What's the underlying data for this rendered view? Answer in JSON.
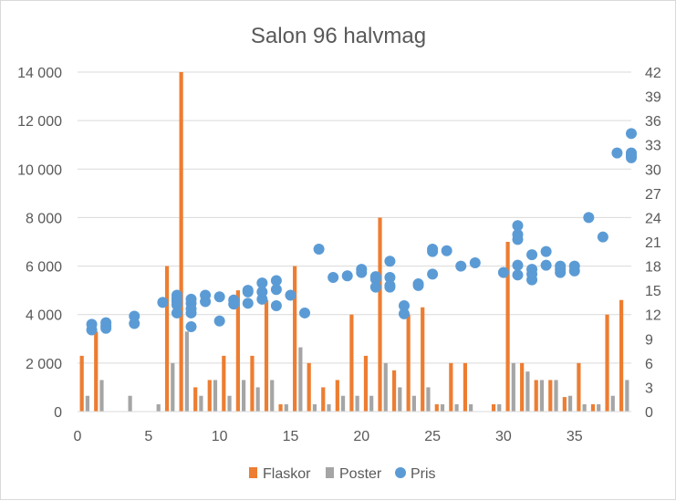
{
  "chart_data": {
    "type": "bar",
    "title": "Salon 96 halvmag",
    "xlim": [
      0,
      39
    ],
    "x_ticks": [
      0,
      5,
      10,
      15,
      20,
      25,
      30,
      35
    ],
    "y_left_ticks": [
      "0",
      "2 000",
      "4 000",
      "6 000",
      "8 000",
      "10 000",
      "12 000",
      "14 000"
    ],
    "y_left_lim": [
      0,
      14000
    ],
    "y_right_ticks": [
      "0",
      "3",
      "6",
      "9",
      "12",
      "15",
      "18",
      "21",
      "24",
      "27",
      "30",
      "33",
      "36",
      "39",
      "42"
    ],
    "y_right_lim": [
      0,
      42
    ],
    "grid": true,
    "legend_position": "bottom",
    "colors": {
      "flaskor": "#ed7d31",
      "poster": "#a5a5a5",
      "pris": "#5b9bd5",
      "grid": "#d9d9d9",
      "text": "#595959"
    },
    "series": [
      {
        "name": "Flaskor",
        "type": "bar",
        "axis": "left",
        "points": [
          [
            0.3,
            2300
          ],
          [
            1.3,
            3300
          ],
          [
            6.3,
            6000
          ],
          [
            7.3,
            14000
          ],
          [
            8.3,
            1000
          ],
          [
            9.3,
            1300
          ],
          [
            10.3,
            2300
          ],
          [
            11.3,
            5000
          ],
          [
            12.3,
            2300
          ],
          [
            13.3,
            4600
          ],
          [
            14.3,
            300
          ],
          [
            15.3,
            6000
          ],
          [
            16.3,
            2000
          ],
          [
            17.3,
            1000
          ],
          [
            18.3,
            1300
          ],
          [
            19.3,
            4000
          ],
          [
            20.3,
            2300
          ],
          [
            21.3,
            8000
          ],
          [
            22.3,
            1700
          ],
          [
            23.3,
            4000
          ],
          [
            24.3,
            4300
          ],
          [
            25.3,
            300
          ],
          [
            26.3,
            2000
          ],
          [
            27.3,
            2000
          ],
          [
            29.3,
            300
          ],
          [
            30.3,
            7000
          ],
          [
            31.3,
            2000
          ],
          [
            32.3,
            1300
          ],
          [
            33.3,
            1300
          ],
          [
            34.3,
            600
          ],
          [
            35.3,
            2000
          ],
          [
            36.3,
            300
          ],
          [
            37.3,
            4000
          ],
          [
            38.3,
            4600
          ]
        ]
      },
      {
        "name": "Poster",
        "type": "bar",
        "axis": "left",
        "points": [
          [
            0.7,
            650
          ],
          [
            1.7,
            1300
          ],
          [
            3.7,
            650
          ],
          [
            5.7,
            300
          ],
          [
            6.7,
            2000
          ],
          [
            7.7,
            3300
          ],
          [
            8.7,
            650
          ],
          [
            9.7,
            1300
          ],
          [
            10.7,
            650
          ],
          [
            11.7,
            1300
          ],
          [
            12.7,
            1000
          ],
          [
            13.7,
            1300
          ],
          [
            14.7,
            300
          ],
          [
            15.7,
            2650
          ],
          [
            16.7,
            300
          ],
          [
            17.7,
            300
          ],
          [
            18.7,
            650
          ],
          [
            19.7,
            650
          ],
          [
            20.7,
            650
          ],
          [
            21.7,
            2000
          ],
          [
            22.7,
            1000
          ],
          [
            23.7,
            650
          ],
          [
            24.7,
            1000
          ],
          [
            25.7,
            300
          ],
          [
            26.7,
            300
          ],
          [
            27.7,
            300
          ],
          [
            29.7,
            300
          ],
          [
            30.7,
            2000
          ],
          [
            31.7,
            1650
          ],
          [
            32.7,
            1300
          ],
          [
            33.7,
            1300
          ],
          [
            34.7,
            650
          ],
          [
            35.7,
            300
          ],
          [
            36.7,
            300
          ],
          [
            37.7,
            650
          ],
          [
            38.7,
            1300
          ]
        ]
      },
      {
        "name": "Pris",
        "type": "scatter",
        "axis": "right",
        "points": [
          [
            1,
            10.8
          ],
          [
            1,
            10.1
          ],
          [
            2,
            11
          ],
          [
            2,
            10.6
          ],
          [
            2,
            10.3
          ],
          [
            4,
            11.8
          ],
          [
            4,
            10.9
          ],
          [
            6,
            13.5
          ],
          [
            7,
            14.4
          ],
          [
            7,
            14
          ],
          [
            7,
            13.6
          ],
          [
            7,
            13.2
          ],
          [
            7,
            12.2
          ],
          [
            7,
            13.8
          ],
          [
            8,
            13.9
          ],
          [
            8,
            13.4
          ],
          [
            8,
            12.7
          ],
          [
            8,
            12.2
          ],
          [
            8,
            10.5
          ],
          [
            9,
            14.4
          ],
          [
            9,
            13.6
          ],
          [
            10,
            14.2
          ],
          [
            10,
            11.2
          ],
          [
            11,
            13.8
          ],
          [
            11,
            13.3
          ],
          [
            12,
            15
          ],
          [
            12,
            14.8
          ],
          [
            12,
            13.4
          ],
          [
            13,
            15.9
          ],
          [
            13,
            14.8
          ],
          [
            13,
            13.9
          ],
          [
            14,
            16.2
          ],
          [
            14,
            15.1
          ],
          [
            14,
            13.1
          ],
          [
            15,
            14.4
          ],
          [
            16,
            12.2
          ],
          [
            17,
            20.1
          ],
          [
            18,
            16.6
          ],
          [
            19,
            16.8
          ],
          [
            20,
            17.6
          ],
          [
            20,
            17.2
          ],
          [
            21,
            16.7
          ],
          [
            21,
            16.4
          ],
          [
            21,
            15.4
          ],
          [
            22,
            18.6
          ],
          [
            22,
            16.6
          ],
          [
            22,
            15.6
          ],
          [
            22,
            15.4
          ],
          [
            23,
            13.1
          ],
          [
            23,
            12.1
          ],
          [
            24,
            15.8
          ],
          [
            24,
            15.6
          ],
          [
            25,
            20.1
          ],
          [
            25,
            19.8
          ],
          [
            25,
            17
          ],
          [
            26,
            19.9
          ],
          [
            27,
            18
          ],
          [
            28,
            18.4
          ],
          [
            30,
            17.2
          ],
          [
            31,
            23
          ],
          [
            31,
            21.9
          ],
          [
            31,
            21.3
          ],
          [
            31,
            18.1
          ],
          [
            31,
            16.9
          ],
          [
            32,
            19.4
          ],
          [
            32,
            17.6
          ],
          [
            32,
            17
          ],
          [
            32,
            16.3
          ],
          [
            33,
            19.8
          ],
          [
            33,
            18.1
          ],
          [
            34,
            18
          ],
          [
            34,
            17.6
          ],
          [
            34,
            17.2
          ],
          [
            35,
            18
          ],
          [
            35,
            17.4
          ],
          [
            36,
            24
          ],
          [
            37,
            21.6
          ],
          [
            38,
            32
          ],
          [
            39,
            34.4
          ],
          [
            39,
            32
          ],
          [
            39,
            31.7
          ],
          [
            39,
            31.4
          ]
        ]
      }
    ]
  }
}
